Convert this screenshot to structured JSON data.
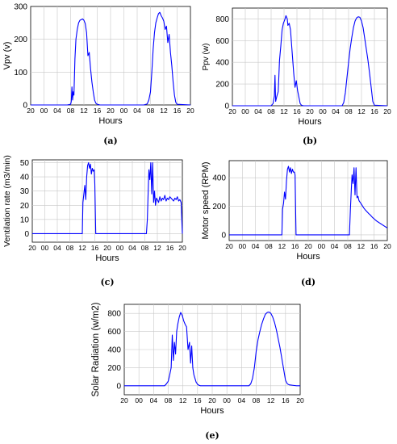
{
  "figure": {
    "captions": [
      "(a)",
      "(b)",
      "(c)",
      "(d)",
      "(e)"
    ]
  },
  "chart_data": [
    {
      "id": "a",
      "type": "line",
      "xlabel": "Hours",
      "ylabel": "Vpv (v)",
      "x_tick_labels": [
        "20",
        "00",
        "04",
        "08",
        "12",
        "16",
        "20",
        "00",
        "04",
        "08",
        "12",
        "16",
        "20"
      ],
      "xlim": [
        0,
        48
      ],
      "ylim": [
        0,
        300
      ],
      "yticks": [
        0,
        100,
        200,
        300
      ],
      "grid": true,
      "color": "#0000ff",
      "series": [
        {
          "x": [
            0,
            11,
            12,
            12.2,
            12.4,
            12.6,
            12.8,
            13,
            13.3,
            13.6,
            14,
            14.4,
            14.8,
            15.2,
            15.6,
            16,
            16.4,
            16.8,
            17.2,
            17.6,
            18,
            18.4,
            18.8,
            19.2,
            19.6,
            20,
            20.4,
            20.8,
            21.2,
            34,
            35,
            35.5,
            36,
            36.4,
            36.8,
            37.2,
            37.6,
            38,
            38.4,
            38.8,
            39.2,
            39.6,
            40,
            40.4,
            40.8,
            41.2,
            41.6,
            42,
            42.4,
            42.8,
            43.2,
            43.6,
            44,
            48
          ],
          "y": [
            0,
            0,
            2,
            10,
            55,
            15,
            40,
            30,
            140,
            200,
            230,
            250,
            258,
            260,
            262,
            258,
            248,
            220,
            150,
            160,
            110,
            70,
            40,
            15,
            5,
            2,
            1,
            0,
            0,
            0,
            3,
            15,
            40,
            100,
            170,
            220,
            250,
            265,
            278,
            282,
            272,
            265,
            255,
            230,
            240,
            190,
            215,
            160,
            120,
            70,
            30,
            8,
            2,
            0
          ]
        }
      ]
    },
    {
      "id": "b",
      "type": "line",
      "xlabel": "Hours",
      "ylabel": "Ppv (w)",
      "x_tick_labels": [
        "20",
        "00",
        "04",
        "08",
        "12",
        "16",
        "20",
        "00",
        "04",
        "08",
        "12",
        "16",
        "20"
      ],
      "xlim": [
        0,
        48
      ],
      "ylim": [
        0,
        900
      ],
      "yticks": [
        0,
        200,
        400,
        600,
        800
      ],
      "grid": true,
      "color": "#0000ff",
      "series": [
        {
          "x": [
            0,
            12,
            12.6,
            13,
            13.2,
            13.4,
            13.8,
            14.2,
            14.6,
            15,
            15.4,
            15.8,
            16.2,
            16.6,
            17,
            17.2,
            17.6,
            18,
            18.2,
            18.6,
            19,
            19.4,
            19.8,
            20.2,
            20.6,
            21,
            21.4,
            22,
            34,
            34.5,
            35,
            35.5,
            36,
            36.5,
            37,
            37.5,
            38,
            38.5,
            39,
            39.5,
            40,
            40.5,
            41,
            41.5,
            42,
            42.5,
            43,
            43.5,
            44,
            48
          ],
          "y": [
            0,
            0,
            20,
            90,
            280,
            40,
            90,
            130,
            420,
            550,
            700,
            760,
            790,
            830,
            800,
            740,
            760,
            700,
            620,
            460,
            300,
            170,
            230,
            140,
            80,
            20,
            5,
            0,
            0,
            30,
            120,
            260,
            400,
            530,
            630,
            720,
            780,
            810,
            820,
            815,
            780,
            720,
            620,
            520,
            420,
            300,
            170,
            40,
            5,
            0
          ]
        }
      ]
    },
    {
      "id": "c",
      "type": "line",
      "xlabel": "Hours",
      "ylabel": "Ventilation rate (m3/min)",
      "x_tick_labels": [
        "20",
        "00",
        "04",
        "08",
        "12",
        "16",
        "20",
        "00",
        "04",
        "08",
        "12",
        "16",
        "20"
      ],
      "xlim": [
        0,
        48
      ],
      "ylim": [
        -6,
        52
      ],
      "yticks": [
        0,
        10,
        20,
        30,
        40,
        50
      ],
      "grid": true,
      "color": "#0000ff",
      "series": [
        {
          "x": [
            0,
            16,
            16.2,
            16.5,
            16.8,
            17.1,
            17.4,
            17.7,
            18,
            18.3,
            18.6,
            18.9,
            19.2,
            19.5,
            19.8,
            20,
            20.3,
            20.6,
            21,
            21.4,
            36.5,
            36.8,
            37.1,
            37.3,
            37.6,
            37.9,
            38.2,
            38.5,
            38.8,
            39.1,
            39.4,
            39.7,
            40,
            40.4,
            40.8,
            41.2,
            41.6,
            42,
            42.4,
            42.8,
            43.2,
            43.6,
            44,
            44.4,
            44.8,
            45.2,
            45.6,
            46,
            46.4,
            46.8,
            47.2,
            47.6,
            48
          ],
          "y": [
            0,
            0,
            22,
            28,
            34,
            24,
            40,
            48,
            50,
            46,
            49,
            42,
            46,
            44,
            45,
            35,
            0,
            0,
            0,
            0,
            0,
            10,
            32,
            45,
            38,
            50,
            28,
            50,
            22,
            30,
            20,
            25,
            24,
            22,
            26,
            23,
            25,
            24,
            27,
            23,
            25,
            24,
            26,
            25,
            24,
            23,
            25,
            24,
            26,
            23,
            24,
            22,
            0
          ]
        }
      ]
    },
    {
      "id": "d",
      "type": "line",
      "xlabel": "Hours",
      "ylabel": "Motor speed (RPM)",
      "x_tick_labels": [
        "20",
        "00",
        "04",
        "08",
        "12",
        "16",
        "20",
        "00",
        "04",
        "08",
        "12",
        "16",
        "20"
      ],
      "xlim": [
        0,
        48
      ],
      "ylim": [
        -40,
        520
      ],
      "yticks": [
        0,
        200,
        400
      ],
      "grid": true,
      "color": "#0000ff",
      "series": [
        {
          "x": [
            0,
            16,
            16.2,
            16.5,
            16.8,
            17.1,
            17.4,
            17.7,
            18,
            18.3,
            18.6,
            18.9,
            19.2,
            19.5,
            19.8,
            20,
            20.3,
            20.6,
            21,
            21.4,
            36.5,
            36.8,
            37.1,
            37.3,
            37.6,
            37.9,
            38.2,
            38.5,
            38.8,
            39.1,
            39.4,
            39.7,
            40,
            40.4,
            40.8,
            41.2,
            41.6,
            42,
            42.4,
            42.8,
            43.2,
            43.6,
            44,
            44.4,
            44.8,
            45.2,
            45.6,
            46,
            46.4,
            46.8,
            47.2,
            47.6,
            48
          ],
          "y": [
            0,
            0,
            180,
            220,
            300,
            250,
            380,
            460,
            480,
            440,
            470,
            430,
            460,
            440,
            440,
            420,
            0,
            0,
            0,
            0,
            0,
            180,
            330,
            420,
            360,
            470,
            280,
            470,
            260,
            270,
            240,
            230,
            220,
            205,
            190,
            178,
            168,
            158,
            148,
            140,
            130,
            120,
            112,
            104,
            96,
            90,
            84,
            78,
            72,
            66,
            60,
            54,
            48
          ]
        }
      ]
    },
    {
      "id": "e",
      "type": "line",
      "xlabel": "Hours",
      "ylabel": "Solar Radiation (w/m2)",
      "x_tick_labels": [
        "20",
        "00",
        "04",
        "08",
        "12",
        "16",
        "20",
        "00",
        "04",
        "08",
        "12",
        "16",
        "20"
      ],
      "xlim": [
        0,
        48
      ],
      "ylim": [
        -100,
        900
      ],
      "yticks": [
        0,
        200,
        400,
        600,
        800
      ],
      "grid": true,
      "color": "#0000ff",
      "series": [
        {
          "x": [
            0,
            11,
            11.5,
            12,
            12.4,
            12.8,
            13.1,
            13.4,
            13.7,
            14,
            14.3,
            14.6,
            15,
            15.4,
            15.8,
            16.2,
            16.6,
            17,
            17.4,
            17.8,
            18.1,
            18.4,
            18.7,
            19,
            19.3,
            19.6,
            20,
            20.4,
            20.8,
            21.2,
            21.6,
            22,
            22.5,
            34,
            34.5,
            35,
            35.5,
            36,
            36.5,
            37,
            37.5,
            38,
            38.5,
            39,
            39.5,
            40,
            40.5,
            41,
            41.5,
            42,
            42.5,
            43,
            43.5,
            44,
            44.5,
            45,
            46,
            47,
            48
          ],
          "y": [
            0,
            0,
            20,
            50,
            120,
            200,
            560,
            280,
            480,
            350,
            600,
            680,
            760,
            810,
            780,
            720,
            680,
            650,
            400,
            480,
            250,
            440,
            200,
            120,
            80,
            40,
            15,
            5,
            0,
            0,
            0,
            0,
            0,
            0,
            20,
            80,
            200,
            380,
            510,
            600,
            680,
            740,
            790,
            810,
            815,
            800,
            760,
            700,
            620,
            520,
            420,
            300,
            180,
            60,
            20,
            10,
            5,
            0,
            0
          ]
        }
      ]
    }
  ]
}
